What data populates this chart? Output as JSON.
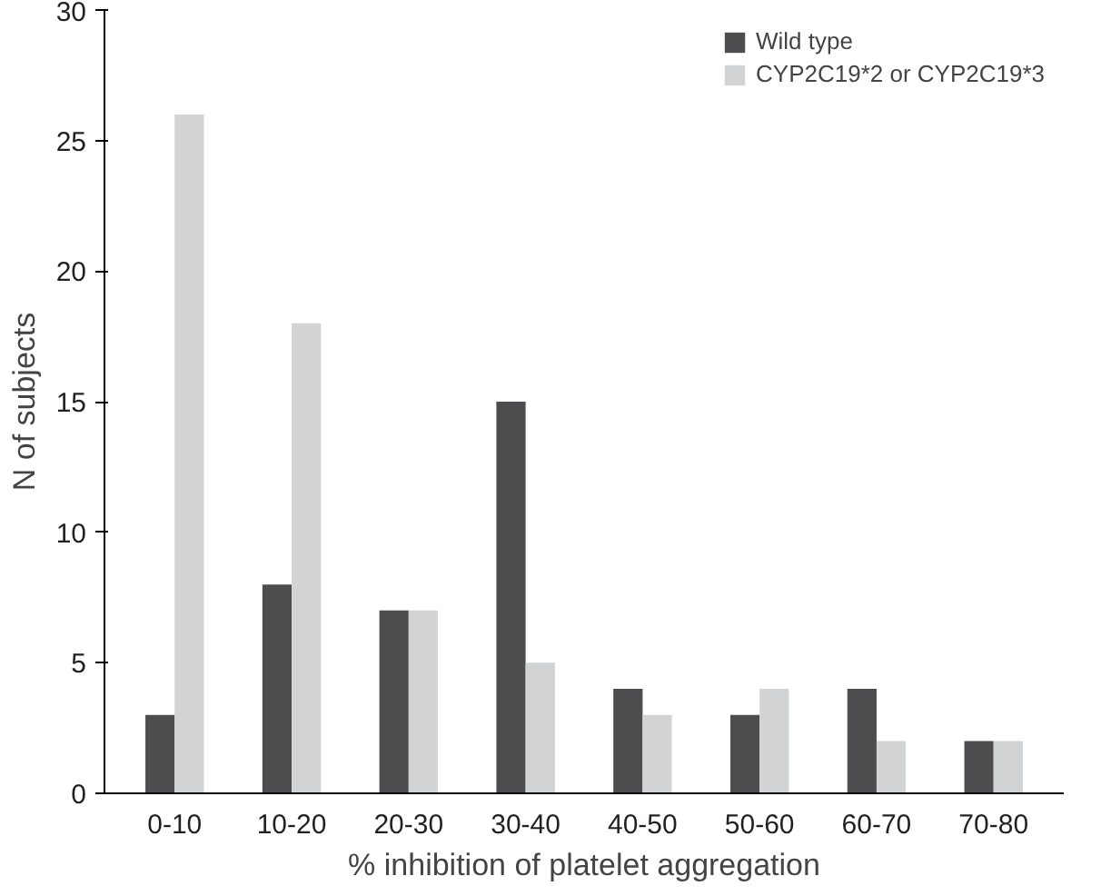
{
  "chart_data": {
    "type": "bar",
    "xlabel": "% inhibition of platelet aggregation",
    "ylabel": "N of subjects",
    "categories": [
      "0-10",
      "10-20",
      "20-30",
      "30-40",
      "40-50",
      "50-60",
      "60-70",
      "70-80"
    ],
    "series": [
      {
        "name": "Wild type",
        "color": "#4d4d4f",
        "values": [
          3,
          8,
          7,
          15,
          4,
          3,
          4,
          2
        ]
      },
      {
        "name": "CYP2C19*2 or CYP2C19*3",
        "color": "#d1d3d4",
        "values": [
          26,
          18,
          7,
          5,
          3,
          4,
          2,
          2
        ]
      }
    ],
    "ylim": [
      0,
      30
    ],
    "yticks": [
      0,
      5,
      10,
      15,
      20,
      25,
      30
    ],
    "grid": false,
    "legend": "top right"
  }
}
